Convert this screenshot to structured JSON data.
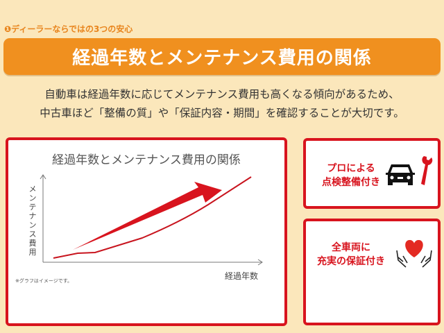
{
  "subheading": "❶ディーラーならではの3つの安心",
  "banner_title": "経過年数とメンテナンス費用の関係",
  "lead": [
    "自動車は経過年数に応じてメンテナンス費用も高くなる傾向があるため、",
    "中古車ほど「整備の質」や「保証内容・期間」を確認することが大切です。"
  ],
  "graph_card": {
    "title": "経過年数とメンテナンス費用の関係",
    "y_label": "メンテナンス費用",
    "x_label": "経過年数",
    "note": "※グラフはイメージです。"
  },
  "features": [
    {
      "lines": [
        "プロによる",
        "点検整備付き"
      ],
      "icon": "car-wrench-icon"
    },
    {
      "lines": [
        "全車両に",
        "充実の保証付き"
      ],
      "icon": "heart-hands-icon"
    }
  ],
  "colors": {
    "accent_orange": "#f0901f",
    "accent_red": "#d8141e",
    "background": "#fbe7bb"
  }
}
